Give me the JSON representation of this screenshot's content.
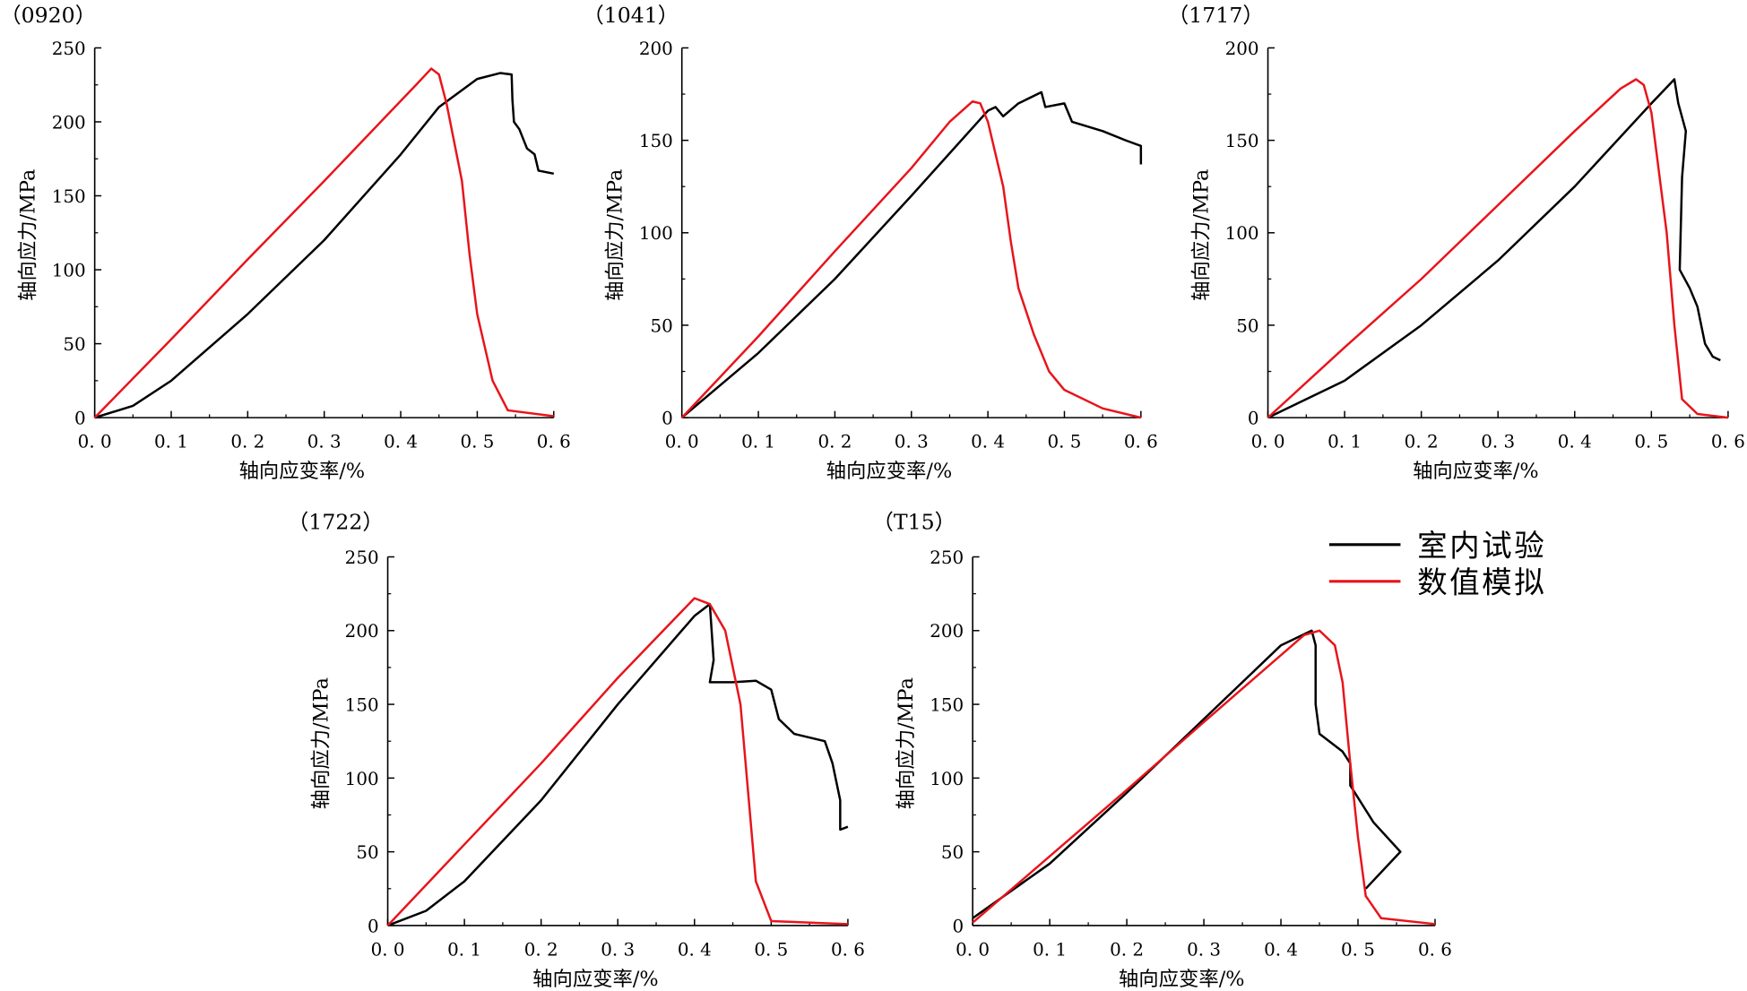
{
  "legend": [
    {
      "label": "室内试验",
      "color": "#000000"
    },
    {
      "label": "数值模拟",
      "color": "#e8141b"
    }
  ],
  "chart_data": [
    {
      "type": "line",
      "title": "（0920）",
      "xlabel": "轴向应变率/%",
      "ylabel": "轴向应力/MPa",
      "xlim": [
        0,
        0.6
      ],
      "ylim": [
        0,
        250
      ],
      "xticks": [
        "0. 0",
        "0. 1",
        "0. 2",
        "0. 3",
        "0. 4",
        "0. 5",
        "0. 6"
      ],
      "yticks": [
        "0",
        "50",
        "100",
        "150",
        "200",
        "250"
      ],
      "series": [
        {
          "name": "室内试验",
          "x": [
            0,
            0.05,
            0.1,
            0.2,
            0.3,
            0.4,
            0.45,
            0.5,
            0.53,
            0.545,
            0.546,
            0.548,
            0.555,
            0.565,
            0.575,
            0.58,
            0.6
          ],
          "y": [
            0,
            8,
            25,
            70,
            120,
            178,
            210,
            229,
            233,
            232,
            215,
            200,
            195,
            182,
            178,
            167,
            165
          ]
        },
        {
          "name": "数值模拟",
          "x": [
            0,
            0.1,
            0.2,
            0.3,
            0.42,
            0.44,
            0.45,
            0.46,
            0.48,
            0.49,
            0.5,
            0.52,
            0.54,
            0.6
          ],
          "y": [
            0,
            53,
            107,
            160,
            225,
            236,
            232,
            212,
            160,
            110,
            70,
            25,
            5,
            1
          ]
        }
      ]
    },
    {
      "type": "line",
      "title": "（1041）",
      "xlabel": "轴向应变率/%",
      "ylabel": "轴向应力/MPa",
      "xlim": [
        0,
        0.6
      ],
      "ylim": [
        0,
        200
      ],
      "xticks": [
        "0. 0",
        "0. 1",
        "0. 2",
        "0. 3",
        "0. 4",
        "0. 5",
        "0. 6"
      ],
      "yticks": [
        "0",
        "50",
        "100",
        "150",
        "200"
      ],
      "series": [
        {
          "name": "室内试验",
          "x": [
            0,
            0.1,
            0.2,
            0.3,
            0.4,
            0.41,
            0.42,
            0.44,
            0.47,
            0.475,
            0.5,
            0.51,
            0.55,
            0.58,
            0.6,
            0.6
          ],
          "y": [
            0,
            35,
            75,
            120,
            166,
            168,
            163,
            170,
            176,
            168,
            170,
            160,
            155,
            150,
            147,
            137
          ]
        },
        {
          "name": "数值模拟",
          "x": [
            0,
            0.1,
            0.2,
            0.3,
            0.35,
            0.38,
            0.39,
            0.4,
            0.42,
            0.43,
            0.44,
            0.46,
            0.48,
            0.5,
            0.55,
            0.6
          ],
          "y": [
            0,
            44,
            90,
            135,
            160,
            171,
            170,
            160,
            125,
            95,
            70,
            45,
            25,
            15,
            5,
            0
          ]
        }
      ]
    },
    {
      "type": "line",
      "title": "（1717）",
      "xlabel": "轴向应变率/%",
      "ylabel": "轴向应力/MPa",
      "xlim": [
        0,
        0.6
      ],
      "ylim": [
        0,
        200
      ],
      "xticks": [
        "0. 0",
        "0. 1",
        "0. 2",
        "0. 3",
        "0. 4",
        "0. 5",
        "0. 6"
      ],
      "yticks": [
        "0",
        "50",
        "100",
        "150",
        "200"
      ],
      "series": [
        {
          "name": "室内试验",
          "x": [
            0,
            0.1,
            0.2,
            0.3,
            0.4,
            0.5,
            0.53,
            0.535,
            0.545,
            0.54,
            0.537,
            0.55,
            0.56,
            0.57,
            0.58,
            0.59
          ],
          "y": [
            0,
            20,
            50,
            85,
            125,
            170,
            183,
            170,
            155,
            130,
            80,
            70,
            60,
            40,
            33,
            31
          ]
        },
        {
          "name": "数值模拟",
          "x": [
            0,
            0.1,
            0.2,
            0.3,
            0.4,
            0.46,
            0.48,
            0.49,
            0.5,
            0.52,
            0.53,
            0.54,
            0.56,
            0.6
          ],
          "y": [
            0,
            38,
            75,
            115,
            155,
            178,
            183,
            180,
            165,
            100,
            50,
            10,
            2,
            0
          ]
        }
      ]
    },
    {
      "type": "line",
      "title": "（1722）",
      "xlabel": "轴向应变率/%",
      "ylabel": "轴向应力/MPa",
      "xlim": [
        0,
        0.6
      ],
      "ylim": [
        0,
        250
      ],
      "xticks": [
        "0. 0",
        "0. 1",
        "0. 2",
        "0. 3",
        "0. 4",
        "0. 5",
        "0. 6"
      ],
      "yticks": [
        "0",
        "50",
        "100",
        "150",
        "200",
        "250"
      ],
      "series": [
        {
          "name": "室内试验",
          "x": [
            0,
            0.05,
            0.1,
            0.2,
            0.3,
            0.4,
            0.42,
            0.425,
            0.42,
            0.45,
            0.48,
            0.5,
            0.51,
            0.53,
            0.57,
            0.58,
            0.59,
            0.59,
            0.6
          ],
          "y": [
            0,
            10,
            30,
            85,
            150,
            210,
            218,
            180,
            165,
            165,
            166,
            160,
            140,
            130,
            125,
            110,
            85,
            65,
            67
          ]
        },
        {
          "name": "数值模拟",
          "x": [
            0,
            0.1,
            0.2,
            0.3,
            0.35,
            0.4,
            0.42,
            0.44,
            0.46,
            0.47,
            0.48,
            0.5,
            0.6
          ],
          "y": [
            0,
            55,
            110,
            168,
            195,
            222,
            218,
            200,
            150,
            90,
            30,
            3,
            1
          ]
        }
      ]
    },
    {
      "type": "line",
      "title": "（T15）",
      "xlabel": "轴向应变率/%",
      "ylabel": "轴向应力/MPa",
      "xlim": [
        0,
        0.6
      ],
      "ylim": [
        0,
        250
      ],
      "xticks": [
        "0. 0",
        "0. 1",
        "0. 2",
        "0. 3",
        "0. 4",
        "0. 5",
        "0. 6"
      ],
      "yticks": [
        "0",
        "50",
        "100",
        "150",
        "200",
        "250"
      ],
      "series": [
        {
          "name": "室内试验",
          "x": [
            0,
            0.1,
            0.2,
            0.3,
            0.4,
            0.44,
            0.445,
            0.445,
            0.45,
            0.48,
            0.49,
            0.49,
            0.52,
            0.555,
            0.51
          ],
          "y": [
            5,
            42,
            90,
            140,
            190,
            200,
            190,
            150,
            130,
            118,
            110,
            95,
            70,
            50,
            25
          ]
        },
        {
          "name": "数值模拟",
          "x": [
            0,
            0.1,
            0.2,
            0.3,
            0.43,
            0.45,
            0.47,
            0.48,
            0.49,
            0.5,
            0.51,
            0.53,
            0.6
          ],
          "y": [
            2,
            47,
            92,
            138,
            197,
            200,
            190,
            165,
            110,
            60,
            20,
            5,
            1
          ]
        }
      ]
    }
  ]
}
